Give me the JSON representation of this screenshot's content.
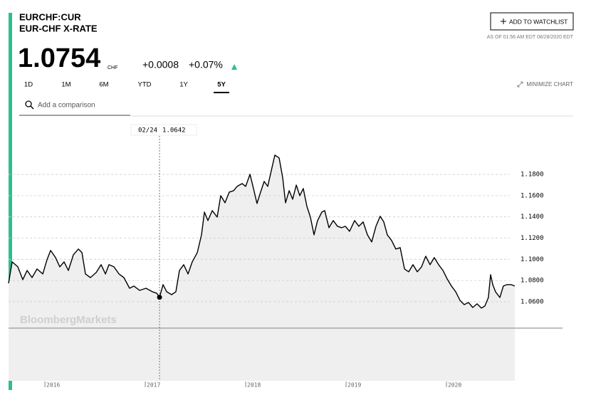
{
  "header": {
    "symbol": "EURCHF:CUR",
    "name": "EUR-CHF X-RATE",
    "price": "1.0754",
    "currency": "CHF",
    "change": "+0.0008",
    "change_pct": "+0.07%",
    "watchlist_button": "ADD TO WATCHLIST",
    "as_of": "AS OF 01:56 AM EDT 08/28/2020 EDT"
  },
  "tabs": [
    "1D",
    "1M",
    "6M",
    "YTD",
    "1Y",
    "5Y"
  ],
  "active_tab": "5Y",
  "minimize": "MINIMIZE CHART",
  "search_placeholder": "Add a comparison",
  "watermark": "BloombergMarkets",
  "chart_data": {
    "type": "line",
    "x": [
      2015.638,
      2015.674,
      2015.73,
      2015.78,
      2015.823,
      2015.872,
      2015.922,
      2015.979,
      2016.021,
      2016.057,
      2016.106,
      2016.149,
      2016.191,
      2016.234,
      2016.284,
      2016.333,
      2016.369,
      2016.404,
      2016.454,
      2016.511,
      2016.56,
      2016.603,
      2016.638,
      2016.688,
      2016.738,
      2016.787,
      2016.844,
      2016.887,
      2016.943,
      2017.007,
      2017.071,
      2017.113,
      2017.142,
      2017.177,
      2017.213,
      2017.262,
      2017.305,
      2017.34,
      2017.383,
      2017.426,
      2017.468,
      2017.518,
      2017.56,
      2017.589,
      2017.624,
      2017.667,
      2017.716,
      2017.752,
      2017.794,
      2017.837,
      2017.879,
      2017.915,
      2017.965,
      2018.0,
      2018.043,
      2018.078,
      2018.113,
      2018.149,
      2018.184,
      2018.22,
      2018.255,
      2018.291,
      2018.333,
      2018.369,
      2018.397,
      2018.433,
      2018.468,
      2018.504,
      2018.539,
      2018.574,
      2018.61,
      2018.645,
      2018.681,
      2018.716,
      2018.759,
      2018.787,
      2018.83,
      2018.872,
      2018.915,
      2018.957,
      2018.993,
      2019.035,
      2019.085,
      2019.128,
      2019.17,
      2019.213,
      2019.255,
      2019.298,
      2019.34,
      2019.376,
      2019.411,
      2019.454,
      2019.496,
      2019.539,
      2019.582,
      2019.624,
      2019.667,
      2019.709,
      2019.752,
      2019.794,
      2019.837,
      2019.879,
      2019.922,
      2019.965,
      2020.007,
      2020.05,
      2020.092,
      2020.135,
      2020.177,
      2020.22,
      2020.262,
      2020.305,
      2020.348,
      2020.383,
      2020.418,
      2020.44,
      2020.461,
      2020.489,
      2020.532,
      2020.567,
      2020.603,
      2020.645,
      2020.681
    ],
    "series": [
      {
        "color": "#000000",
        "values": [
          1.0774,
          1.0976,
          1.0929,
          1.0808,
          1.0895,
          1.0828,
          1.0909,
          1.0862,
          1.0996,
          1.1083,
          1.1016,
          1.0929,
          1.0976,
          1.0895,
          1.1043,
          1.1097,
          1.1063,
          1.0862,
          1.0828,
          1.0875,
          1.0949,
          1.0862,
          1.0949,
          1.0929,
          1.0862,
          1.0828,
          1.0727,
          1.0748,
          1.0707,
          1.0727,
          1.0694,
          1.0681,
          1.0642,
          1.0761,
          1.0694,
          1.0667,
          1.0694,
          1.0895,
          1.0949,
          1.0862,
          1.0976,
          1.1063,
          1.1231,
          1.1445,
          1.1365,
          1.1459,
          1.1398,
          1.16,
          1.1533,
          1.1633,
          1.1647,
          1.1687,
          1.1714,
          1.1687,
          1.1801,
          1.1667,
          1.1526,
          1.1633,
          1.1734,
          1.1687,
          1.1835,
          1.1982,
          1.1955,
          1.1768,
          1.1533,
          1.1647,
          1.1566,
          1.17,
          1.16,
          1.1667,
          1.1499,
          1.1398,
          1.1231,
          1.1365,
          1.1445,
          1.1459,
          1.1298,
          1.1365,
          1.1311,
          1.1298,
          1.1311,
          1.1264,
          1.1365,
          1.1311,
          1.1352,
          1.1231,
          1.1164,
          1.1311,
          1.1405,
          1.1352,
          1.1231,
          1.1177,
          1.1097,
          1.111,
          1.0909,
          1.0882,
          1.0949,
          1.0882,
          1.0929,
          1.1029,
          1.0949,
          1.1016,
          1.0949,
          1.0895,
          1.0815,
          1.0748,
          1.0694,
          1.0613,
          1.0573,
          1.0593,
          1.0546,
          1.058,
          1.054,
          1.056,
          1.064,
          1.0855,
          1.0761,
          1.0694,
          1.064,
          1.0748,
          1.0761,
          1.0761,
          1.0748
        ]
      }
    ],
    "area_color": "#efefef",
    "xlim": [
      2015.638,
      2020.681
    ],
    "ylim": [
      0.9855,
      1.2337
    ],
    "xticks": [
      2016,
      2017,
      2018,
      2019,
      2020
    ],
    "yticks": [
      {
        "value": 1.06,
        "label": "1.0600"
      },
      {
        "value": 1.08,
        "label": "1.0800"
      },
      {
        "value": 1.1,
        "label": "1.1000"
      },
      {
        "value": 1.12,
        "label": "1.1200"
      },
      {
        "value": 1.14,
        "label": "1.1400"
      },
      {
        "value": 1.16,
        "label": "1.1600"
      },
      {
        "value": 1.18,
        "label": "1.1800"
      }
    ],
    "grid": true,
    "crosshair": {
      "date": "02/24",
      "x": 2017.142,
      "value": 1.0642
    }
  }
}
